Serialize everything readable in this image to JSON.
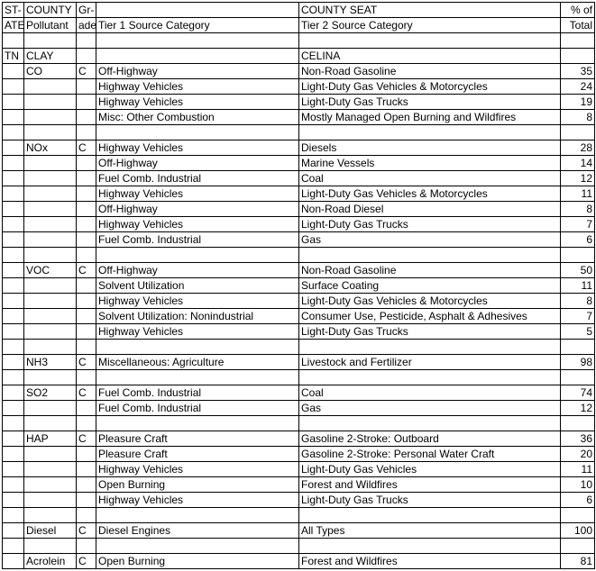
{
  "columns": {
    "widths": [
      "24px",
      "58px",
      "22px",
      "225px",
      "290px",
      "38px"
    ],
    "aligns": [
      "left",
      "left",
      "left",
      "left",
      "left",
      "right"
    ]
  },
  "header": {
    "row1": [
      "ST-",
      "COUNTY",
      "Gr-",
      "",
      "COUNTY SEAT",
      "% of"
    ],
    "row2": [
      "ATE",
      "Pollutant",
      "ade",
      "Tier 1 Source Category",
      "Tier 2 Source Category",
      "Total"
    ]
  },
  "rows": [
    [
      "",
      "",
      "",
      "",
      "",
      ""
    ],
    [
      "TN",
      "CLAY",
      "",
      "",
      "CELINA",
      ""
    ],
    [
      "",
      "CO",
      "C",
      "Off-Highway",
      "Non-Road Gasoline",
      "35"
    ],
    [
      "",
      "",
      "",
      "Highway Vehicles",
      "Light-Duty Gas Vehicles & Motorcycles",
      "24"
    ],
    [
      "",
      "",
      "",
      "Highway Vehicles",
      "Light-Duty Gas Trucks",
      "19"
    ],
    [
      "",
      "",
      "",
      "Misc: Other Combustion",
      "Mostly Managed Open Burning and Wildfires",
      "8"
    ],
    [
      "",
      "",
      "",
      "",
      "",
      ""
    ],
    [
      "",
      "NOx",
      "C",
      "Highway Vehicles",
      "Diesels",
      "28"
    ],
    [
      "",
      "",
      "",
      "Off-Highway",
      "Marine Vessels",
      "14"
    ],
    [
      "",
      "",
      "",
      "Fuel Comb. Industrial",
      "Coal",
      "12"
    ],
    [
      "",
      "",
      "",
      "Highway Vehicles",
      "Light-Duty Gas Vehicles & Motorcycles",
      "11"
    ],
    [
      "",
      "",
      "",
      "Off-Highway",
      "Non-Road Diesel",
      "8"
    ],
    [
      "",
      "",
      "",
      "Highway Vehicles",
      "Light-Duty Gas Trucks",
      "7"
    ],
    [
      "",
      "",
      "",
      "Fuel Comb. Industrial",
      "Gas",
      "6"
    ],
    [
      "",
      "",
      "",
      "",
      "",
      ""
    ],
    [
      "",
      "VOC",
      "C",
      "Off-Highway",
      "Non-Road Gasoline",
      "50"
    ],
    [
      "",
      "",
      "",
      "Solvent Utilization",
      "Surface Coating",
      "11"
    ],
    [
      "",
      "",
      "",
      "Highway Vehicles",
      "Light-Duty Gas Vehicles & Motorcycles",
      "8"
    ],
    [
      "",
      "",
      "",
      "Solvent Utilization: Nonindustrial",
      "Consumer Use, Pesticide, Asphalt & Adhesives",
      "7"
    ],
    [
      "",
      "",
      "",
      "Highway Vehicles",
      "Light-Duty Gas Trucks",
      "5"
    ],
    [
      "",
      "",
      "",
      "",
      "",
      ""
    ],
    [
      "",
      "NH3",
      "C",
      "Miscellaneous: Agriculture",
      "Livestock and Fertilizer",
      "98"
    ],
    [
      "",
      "",
      "",
      "",
      "",
      ""
    ],
    [
      "",
      "SO2",
      "C",
      "Fuel Comb. Industrial",
      "Coal",
      "74"
    ],
    [
      "",
      "",
      "",
      "Fuel Comb. Industrial",
      "Gas",
      "12"
    ],
    [
      "",
      "",
      "",
      "",
      "",
      ""
    ],
    [
      "",
      "HAP",
      "C",
      "Pleasure Craft",
      "Gasoline 2-Stroke: Outboard",
      "36"
    ],
    [
      "",
      "",
      "",
      "Pleasure Craft",
      "Gasoline 2-Stroke: Personal Water Craft",
      "20"
    ],
    [
      "",
      "",
      "",
      "Highway Vehicles",
      "Light-Duty Gas Vehicles",
      "11"
    ],
    [
      "",
      "",
      "",
      "Open Burning",
      "Forest and Wildfires",
      "10"
    ],
    [
      "",
      "",
      "",
      "Highway Vehicles",
      "Light-Duty Gas Trucks",
      "6"
    ],
    [
      "",
      "",
      "",
      "",
      "",
      ""
    ],
    [
      "",
      "Diesel",
      "C",
      "Diesel Engines",
      "All Types",
      "100"
    ],
    [
      "",
      "",
      "",
      "",
      "",
      ""
    ],
    [
      "",
      "Acrolein",
      "C",
      "Open Burning",
      "Forest and Wildfires",
      "81"
    ]
  ]
}
